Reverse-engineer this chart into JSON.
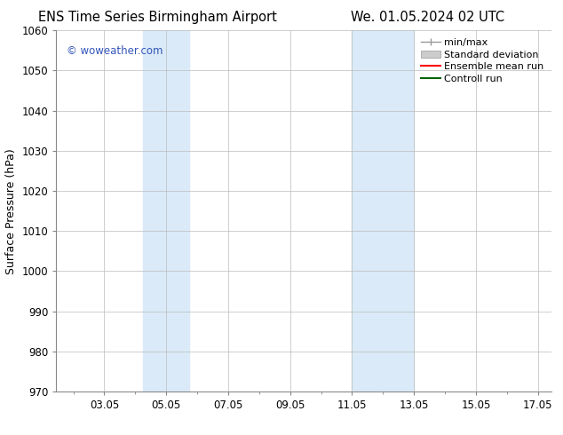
{
  "title_left": "ENS Time Series Birmingham Airport",
  "title_right": "We. 01.05.2024 02 UTC",
  "ylabel": "Surface Pressure (hPa)",
  "xlim": [
    1.5,
    17.5
  ],
  "ylim": [
    970,
    1060
  ],
  "yticks": [
    970,
    980,
    990,
    1000,
    1010,
    1020,
    1030,
    1040,
    1050,
    1060
  ],
  "xticks": [
    3.05,
    5.05,
    7.05,
    9.05,
    11.05,
    13.05,
    15.05,
    17.05
  ],
  "xticklabels": [
    "03.05",
    "05.05",
    "07.05",
    "09.05",
    "11.05",
    "13.05",
    "15.05",
    "17.05"
  ],
  "shaded_bands": [
    {
      "xmin": 4.3,
      "xmax": 5.8
    },
    {
      "xmin": 11.05,
      "xmax": 13.05
    }
  ],
  "shade_color": "#daeaf8",
  "watermark": "© woweather.com",
  "watermark_color": "#3355bb",
  "bg_color": "#ffffff",
  "grid_color": "#bbbbbb",
  "title_fontsize": 10.5,
  "tick_fontsize": 8.5,
  "ylabel_fontsize": 9,
  "legend_fontsize": 8
}
